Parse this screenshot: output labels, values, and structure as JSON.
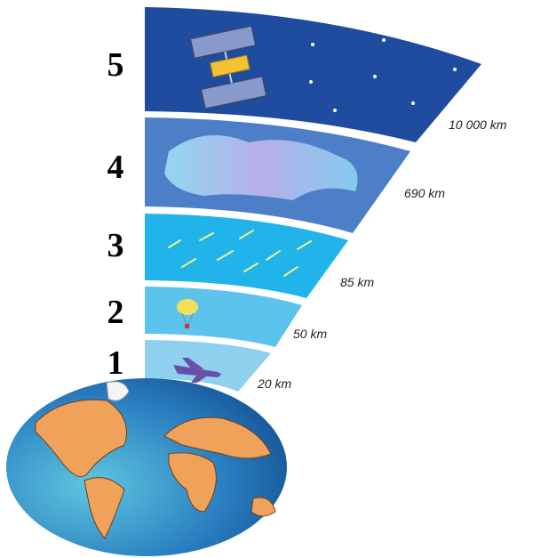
{
  "layers": [
    {
      "number": "1",
      "altitude": "20 km"
    },
    {
      "number": "2",
      "altitude": "50 km"
    },
    {
      "number": "3",
      "altitude": "85 km"
    },
    {
      "number": "4",
      "altitude": "690 km"
    },
    {
      "number": "5",
      "altitude": "10 000 km"
    }
  ]
}
